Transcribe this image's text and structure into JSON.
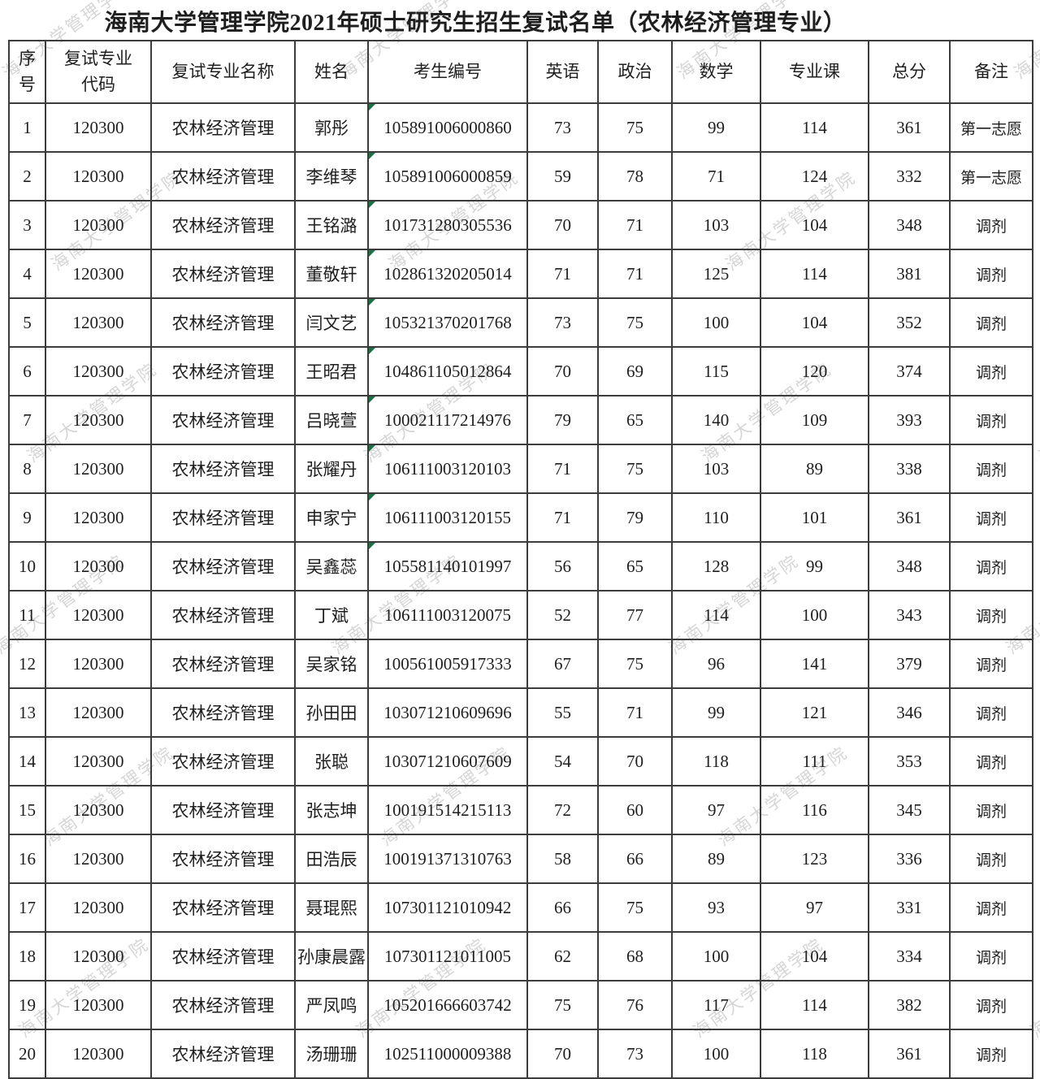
{
  "title": "海南大学管理学院2021年硕士研究生招生复试名单（农林经济管理专业）",
  "watermark": {
    "text": "海南大学管理学院",
    "color": "#d6d6d6"
  },
  "colors": {
    "border": "#3c3c3c",
    "text": "#1e1e1e",
    "flag_green": "#1f7145"
  },
  "table": {
    "columns": [
      {
        "key": "no",
        "label": "序\n号"
      },
      {
        "key": "code",
        "label": "复试专业\n代码"
      },
      {
        "key": "major",
        "label": "复试专业名称"
      },
      {
        "key": "name",
        "label": "姓名"
      },
      {
        "key": "candidate_id",
        "label": "考生编号"
      },
      {
        "key": "english",
        "label": "英语"
      },
      {
        "key": "politics",
        "label": "政治"
      },
      {
        "key": "math",
        "label": "数学"
      },
      {
        "key": "course",
        "label": "专业课"
      },
      {
        "key": "total",
        "label": "总分"
      },
      {
        "key": "remark",
        "label": "备注"
      }
    ],
    "rows": [
      {
        "no": "1",
        "code": "120300",
        "major": "农林经济管理",
        "name": "郭彤",
        "candidate_id": "105891006000860",
        "english": "73",
        "politics": "75",
        "math": "99",
        "course": "114",
        "total": "361",
        "remark": "第一志愿",
        "text_flag": true
      },
      {
        "no": "2",
        "code": "120300",
        "major": "农林经济管理",
        "name": "李维琴",
        "candidate_id": "105891006000859",
        "english": "59",
        "politics": "78",
        "math": "71",
        "course": "124",
        "total": "332",
        "remark": "第一志愿",
        "text_flag": true
      },
      {
        "no": "3",
        "code": "120300",
        "major": "农林经济管理",
        "name": "王铭潞",
        "candidate_id": "101731280305536",
        "english": "70",
        "politics": "71",
        "math": "103",
        "course": "104",
        "total": "348",
        "remark": "调剂",
        "text_flag": true
      },
      {
        "no": "4",
        "code": "120300",
        "major": "农林经济管理",
        "name": "董敬轩",
        "candidate_id": "102861320205014",
        "english": "71",
        "politics": "71",
        "math": "125",
        "course": "114",
        "total": "381",
        "remark": "调剂",
        "text_flag": true
      },
      {
        "no": "5",
        "code": "120300",
        "major": "农林经济管理",
        "name": "闫文艺",
        "candidate_id": "105321370201768",
        "english": "73",
        "politics": "75",
        "math": "100",
        "course": "104",
        "total": "352",
        "remark": "调剂",
        "text_flag": true
      },
      {
        "no": "6",
        "code": "120300",
        "major": "农林经济管理",
        "name": "王昭君",
        "candidate_id": "104861105012864",
        "english": "70",
        "politics": "69",
        "math": "115",
        "course": "120",
        "total": "374",
        "remark": "调剂",
        "text_flag": true
      },
      {
        "no": "7",
        "code": "120300",
        "major": "农林经济管理",
        "name": "吕晓萱",
        "candidate_id": "100021117214976",
        "english": "79",
        "politics": "65",
        "math": "140",
        "course": "109",
        "total": "393",
        "remark": "调剂",
        "text_flag": true
      },
      {
        "no": "8",
        "code": "120300",
        "major": "农林经济管理",
        "name": "张耀丹",
        "candidate_id": "106111003120103",
        "english": "71",
        "politics": "75",
        "math": "103",
        "course": "89",
        "total": "338",
        "remark": "调剂",
        "text_flag": true
      },
      {
        "no": "9",
        "code": "120300",
        "major": "农林经济管理",
        "name": "申家宁",
        "candidate_id": "106111003120155",
        "english": "71",
        "politics": "79",
        "math": "110",
        "course": "101",
        "total": "361",
        "remark": "调剂",
        "text_flag": true
      },
      {
        "no": "10",
        "code": "120300",
        "major": "农林经济管理",
        "name": "吴鑫蕊",
        "candidate_id": "105581140101997",
        "english": "56",
        "politics": "65",
        "math": "128",
        "course": "99",
        "total": "348",
        "remark": "调剂",
        "text_flag": true
      },
      {
        "no": "11",
        "code": "120300",
        "major": "农林经济管理",
        "name": "丁斌",
        "candidate_id": "106111003120075",
        "english": "52",
        "politics": "77",
        "math": "114",
        "course": "100",
        "total": "343",
        "remark": "调剂",
        "text_flag": false
      },
      {
        "no": "12",
        "code": "120300",
        "major": "农林经济管理",
        "name": "吴家铭",
        "candidate_id": "100561005917333",
        "english": "67",
        "politics": "75",
        "math": "96",
        "course": "141",
        "total": "379",
        "remark": "调剂",
        "text_flag": false
      },
      {
        "no": "13",
        "code": "120300",
        "major": "农林经济管理",
        "name": "孙田田",
        "candidate_id": "103071210609696",
        "english": "55",
        "politics": "71",
        "math": "99",
        "course": "121",
        "total": "346",
        "remark": "调剂",
        "text_flag": false
      },
      {
        "no": "14",
        "code": "120300",
        "major": "农林经济管理",
        "name": "张聪",
        "candidate_id": "103071210607609",
        "english": "54",
        "politics": "70",
        "math": "118",
        "course": "111",
        "total": "353",
        "remark": "调剂",
        "text_flag": false
      },
      {
        "no": "15",
        "code": "120300",
        "major": "农林经济管理",
        "name": "张志坤",
        "candidate_id": "100191514215113",
        "english": "72",
        "politics": "60",
        "math": "97",
        "course": "116",
        "total": "345",
        "remark": "调剂",
        "text_flag": false
      },
      {
        "no": "16",
        "code": "120300",
        "major": "农林经济管理",
        "name": "田浩辰",
        "candidate_id": "100191371310763",
        "english": "58",
        "politics": "66",
        "math": "89",
        "course": "123",
        "total": "336",
        "remark": "调剂",
        "text_flag": false
      },
      {
        "no": "17",
        "code": "120300",
        "major": "农林经济管理",
        "name": "聂琨熙",
        "candidate_id": "107301121010942",
        "english": "66",
        "politics": "75",
        "math": "93",
        "course": "97",
        "total": "331",
        "remark": "调剂",
        "text_flag": false
      },
      {
        "no": "18",
        "code": "120300",
        "major": "农林经济管理",
        "name": "孙康晨露",
        "candidate_id": "107301121011005",
        "english": "62",
        "politics": "68",
        "math": "100",
        "course": "104",
        "total": "334",
        "remark": "调剂",
        "text_flag": false
      },
      {
        "no": "19",
        "code": "120300",
        "major": "农林经济管理",
        "name": "严凤鸣",
        "candidate_id": "105201666603742",
        "english": "75",
        "politics": "76",
        "math": "117",
        "course": "114",
        "total": "382",
        "remark": "调剂",
        "text_flag": false
      },
      {
        "no": "20",
        "code": "120300",
        "major": "农林经济管理",
        "name": "汤珊珊",
        "candidate_id": "102511000009388",
        "english": "70",
        "politics": "73",
        "math": "100",
        "course": "118",
        "total": "361",
        "remark": "调剂",
        "text_flag": false
      }
    ]
  }
}
